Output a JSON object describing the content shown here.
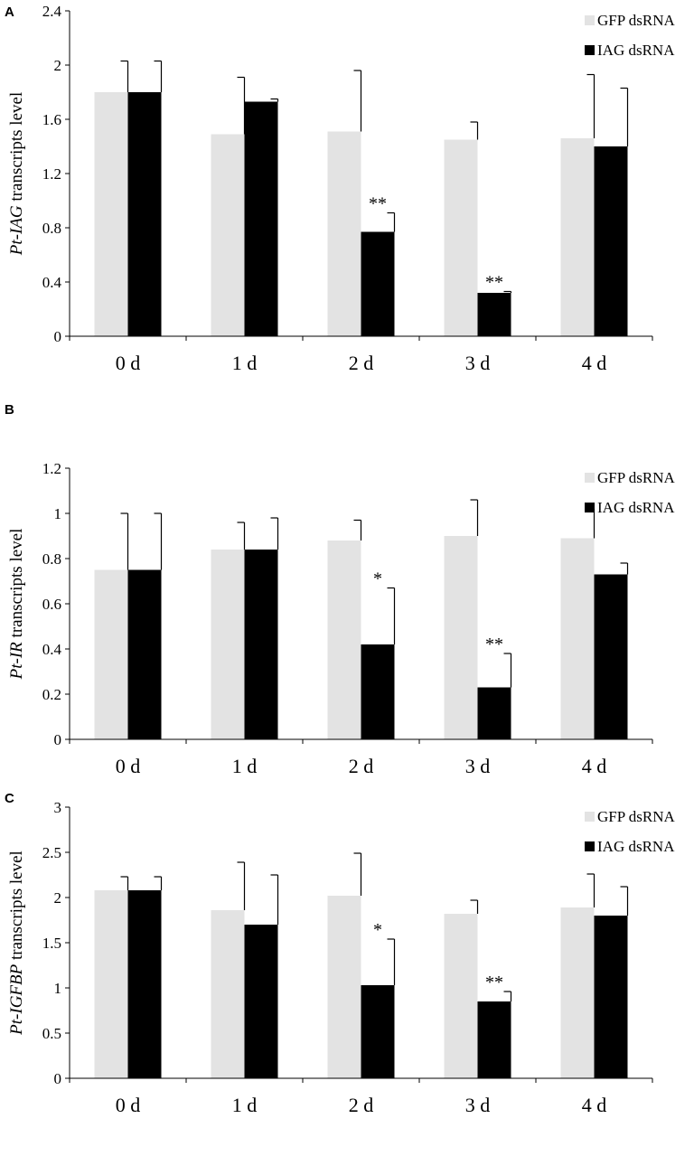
{
  "figure": {
    "chart_data": [
      {
        "type": "bar",
        "panel": "A",
        "ylabel_italic": "Pt-IAG",
        "ylabel_rest": " transcripts level",
        "ylim": [
          0,
          2.4
        ],
        "yticks": [
          "0",
          "0.4",
          "0.8",
          "1.2",
          "1.6",
          "2",
          "2.4"
        ],
        "categories": [
          "0 d",
          "1 d",
          "2 d",
          "3 d",
          "4 d"
        ],
        "series": [
          {
            "name": "GFP dsRNA",
            "color": "#e3e3e3",
            "values": [
              1.8,
              1.49,
              1.51,
              1.45,
              1.46
            ],
            "errors": [
              0.23,
              0.42,
              0.45,
              0.13,
              0.47
            ],
            "sig": [
              "",
              "",
              "",
              "",
              ""
            ]
          },
          {
            "name": "IAG dsRNA",
            "color": "#000000",
            "values": [
              1.8,
              1.73,
              0.77,
              0.32,
              1.4
            ],
            "errors": [
              0.23,
              0.02,
              0.14,
              0.01,
              0.43
            ],
            "sig": [
              "",
              "",
              "**",
              "**",
              ""
            ]
          }
        ]
      },
      {
        "type": "bar",
        "panel": "B",
        "ylabel_italic": "Pt-IR",
        "ylabel_rest": " transcripts level",
        "ylim": [
          0,
          1.2
        ],
        "yticks": [
          "0",
          "0.2",
          "0.4",
          "0.6",
          "0.8",
          "1",
          "1.2"
        ],
        "categories": [
          "0 d",
          "1 d",
          "2 d",
          "3 d",
          "4 d"
        ],
        "series": [
          {
            "name": "GFP dsRNA",
            "color": "#e3e3e3",
            "values": [
              0.75,
              0.84,
              0.88,
              0.9,
              0.89
            ],
            "errors": [
              0.25,
              0.12,
              0.09,
              0.16,
              0.13
            ],
            "sig": [
              "",
              "",
              "",
              "",
              ""
            ]
          },
          {
            "name": "IAG dsRNA",
            "color": "#000000",
            "values": [
              0.75,
              0.84,
              0.42,
              0.23,
              0.73
            ],
            "errors": [
              0.25,
              0.14,
              0.25,
              0.15,
              0.05
            ],
            "sig": [
              "",
              "",
              "*",
              "**",
              ""
            ]
          }
        ]
      },
      {
        "type": "bar",
        "panel": "C",
        "ylabel_italic": "Pt-IGFBP",
        "ylabel_rest": " transcripts level",
        "ylim": [
          0,
          3
        ],
        "yticks": [
          "0",
          "0.5",
          "1",
          "1.5",
          "2",
          "2.5",
          "3"
        ],
        "categories": [
          "0 d",
          "1 d",
          "2 d",
          "3 d",
          "4 d"
        ],
        "series": [
          {
            "name": "GFP dsRNA",
            "color": "#e3e3e3",
            "values": [
              2.08,
              1.86,
              2.02,
              1.82,
              1.89
            ],
            "errors": [
              0.15,
              0.53,
              0.47,
              0.15,
              0.37
            ],
            "sig": [
              "",
              "",
              "",
              "",
              ""
            ]
          },
          {
            "name": "IAG dsRNA",
            "color": "#000000",
            "values": [
              2.08,
              1.7,
              1.03,
              0.85,
              1.8
            ],
            "errors": [
              0.15,
              0.55,
              0.51,
              0.11,
              0.32
            ],
            "sig": [
              "",
              "",
              "*",
              "**",
              ""
            ]
          }
        ]
      }
    ]
  }
}
